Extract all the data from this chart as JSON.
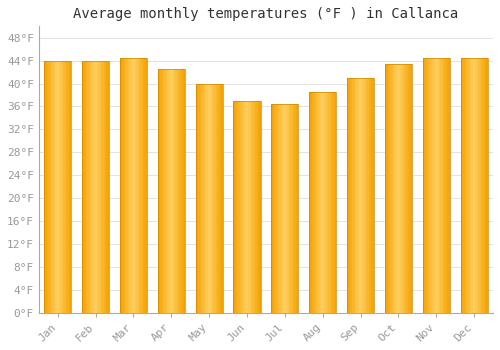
{
  "title": "Average monthly temperatures (°F ) in Callanca",
  "months": [
    "Jan",
    "Feb",
    "Mar",
    "Apr",
    "May",
    "Jun",
    "Jul",
    "Aug",
    "Sep",
    "Oct",
    "Nov",
    "Dec"
  ],
  "values": [
    44,
    44,
    44.5,
    42.5,
    40,
    37,
    36.5,
    38.5,
    41,
    43.5,
    44.5,
    44.5
  ],
  "yticks": [
    0,
    4,
    8,
    12,
    16,
    20,
    24,
    28,
    32,
    36,
    40,
    44,
    48
  ],
  "ylim": [
    0,
    50
  ],
  "background_color": "#FFFFFF",
  "plot_bg_color": "#FFFFFF",
  "grid_color": "#DDDDDD",
  "title_fontsize": 10,
  "tick_fontsize": 8,
  "tick_color": "#999999",
  "bar_color_center": "#FFD060",
  "bar_color_edge": "#F5A000",
  "bar_edge_color": "#CC8800",
  "bar_width": 0.72
}
